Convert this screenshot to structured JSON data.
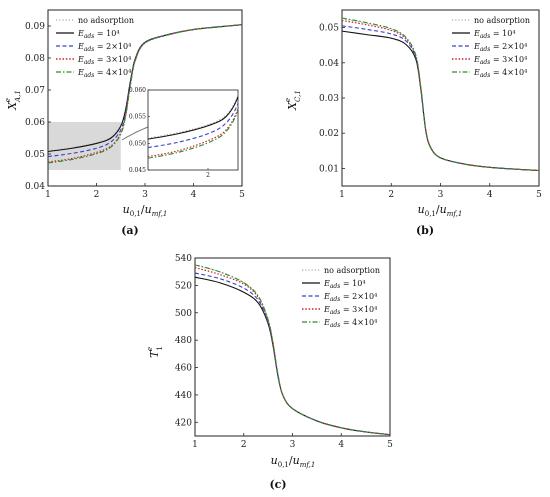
{
  "colors": {
    "no_adsorption": "#aaaaaa",
    "e1": "#111111",
    "e2": "#3344cc",
    "e3": "#cc2222",
    "e4": "#2e8b2e",
    "inset_box": "#d9d9d9"
  },
  "legend_rows": [
    {
      "prefix": "no adsorption",
      "sub": "",
      "value": ""
    },
    {
      "prefix": "E",
      "sub": "ads",
      "value": " = 10⁴"
    },
    {
      "prefix": "E",
      "sub": "ads",
      "value": " = 2×10⁴"
    },
    {
      "prefix": "E",
      "sub": "ads",
      "value": " = 3×10⁴"
    },
    {
      "prefix": "E",
      "sub": "ads",
      "value": " = 4×10⁴"
    }
  ],
  "chart_data": [
    {
      "type": "line",
      "caption": "(a)",
      "xlabel": "u0,1/umf,1",
      "ylabel": "Xe A,1",
      "xlim": [
        1,
        5
      ],
      "ylim": [
        0.04,
        0.095
      ],
      "xticks": [
        "1",
        "2",
        "3",
        "4",
        "5"
      ],
      "yticks": [
        "0.04",
        "0.05",
        "0.06",
        "0.07",
        "0.08",
        "0.09"
      ],
      "legend_position": "upper-left",
      "highlight_region": {
        "x": [
          1,
          2.5
        ],
        "y": [
          0.045,
          0.06
        ]
      },
      "inset": {
        "xlim": [
          1,
          2.5
        ],
        "ylim": [
          0.045,
          0.06
        ],
        "xticks": [
          "2"
        ],
        "yticks": [
          "0.045",
          "0.050",
          "0.055",
          "0.060"
        ]
      },
      "x": [
        1.0,
        1.5,
        2.0,
        2.3,
        2.5,
        2.6,
        2.7,
        2.8,
        3.0,
        3.5,
        4.0,
        4.5,
        5.0
      ],
      "series": [
        {
          "name": "no adsorption",
          "values": [
            0.051,
            0.052,
            0.0535,
            0.0553,
            0.059,
            0.064,
            0.073,
            0.08,
            0.085,
            0.0875,
            0.089,
            0.0898,
            0.0904
          ]
        },
        {
          "name": "Eads = 10⁴",
          "values": [
            0.0508,
            0.0518,
            0.0533,
            0.055,
            0.0587,
            0.0638,
            0.0728,
            0.0798,
            0.0849,
            0.0874,
            0.0889,
            0.0897,
            0.0904
          ]
        },
        {
          "name": "Eads = 2×10⁴",
          "values": [
            0.0492,
            0.0502,
            0.0518,
            0.0538,
            0.0575,
            0.0628,
            0.0722,
            0.0795,
            0.0848,
            0.0874,
            0.0889,
            0.0897,
            0.0904
          ]
        },
        {
          "name": "Eads = 3×10⁴",
          "values": [
            0.0475,
            0.0486,
            0.0505,
            0.0525,
            0.0565,
            0.062,
            0.0718,
            0.0793,
            0.0847,
            0.0873,
            0.0889,
            0.0897,
            0.0904
          ]
        },
        {
          "name": "Eads = 4×10⁴",
          "values": [
            0.0472,
            0.0483,
            0.0501,
            0.0522,
            0.0562,
            0.0617,
            0.0716,
            0.0792,
            0.0847,
            0.0873,
            0.0889,
            0.0897,
            0.0904
          ]
        }
      ]
    },
    {
      "type": "line",
      "caption": "(b)",
      "xlabel": "u0,1/umf,1",
      "ylabel": "Xe C,1",
      "xlim": [
        1,
        5
      ],
      "ylim": [
        0.005,
        0.055
      ],
      "xticks": [
        "1",
        "2",
        "3",
        "4",
        "5"
      ],
      "yticks": [
        "0.01",
        "0.02",
        "0.03",
        "0.04",
        "0.05"
      ],
      "legend_position": "upper-right",
      "x": [
        1.0,
        1.5,
        2.0,
        2.3,
        2.5,
        2.6,
        2.7,
        2.8,
        3.0,
        3.5,
        4.0,
        4.5,
        5.0
      ],
      "series": [
        {
          "name": "no adsorption",
          "values": [
            0.0525,
            0.0512,
            0.0495,
            0.047,
            0.042,
            0.033,
            0.021,
            0.016,
            0.013,
            0.0112,
            0.0103,
            0.0098,
            0.0094
          ]
        },
        {
          "name": "Eads = 10⁴",
          "values": [
            0.049,
            0.048,
            0.047,
            0.0452,
            0.041,
            0.0325,
            0.0208,
            0.0159,
            0.013,
            0.0112,
            0.0103,
            0.0098,
            0.0094
          ]
        },
        {
          "name": "Eads = 2×10⁴",
          "values": [
            0.0505,
            0.0495,
            0.0482,
            0.0462,
            0.0415,
            0.0327,
            0.0209,
            0.0159,
            0.013,
            0.0112,
            0.0103,
            0.0098,
            0.0094
          ]
        },
        {
          "name": "Eads = 3×10⁴",
          "values": [
            0.052,
            0.0508,
            0.0492,
            0.0468,
            0.0418,
            0.0329,
            0.021,
            0.016,
            0.013,
            0.0112,
            0.0103,
            0.0098,
            0.0094
          ]
        },
        {
          "name": "Eads = 4×10⁴",
          "values": [
            0.0527,
            0.0514,
            0.0497,
            0.0472,
            0.0421,
            0.0331,
            0.0211,
            0.016,
            0.013,
            0.0112,
            0.0103,
            0.0098,
            0.0094
          ]
        }
      ]
    },
    {
      "type": "line",
      "caption": "(c)",
      "xlabel": "u0,1/umf,1",
      "ylabel": "Te 1",
      "xlim": [
        1,
        5
      ],
      "ylim": [
        410,
        540
      ],
      "xticks": [
        "1",
        "2",
        "3",
        "4",
        "5"
      ],
      "yticks": [
        "420",
        "440",
        "460",
        "480",
        "500",
        "520",
        "540"
      ],
      "legend_position": "upper-right",
      "x": [
        1.0,
        1.5,
        2.0,
        2.3,
        2.5,
        2.6,
        2.7,
        2.8,
        3.0,
        3.5,
        4.0,
        4.5,
        5.0
      ],
      "series": [
        {
          "name": "no adsorption",
          "values": [
            535,
            530,
            522,
            512,
            495,
            478,
            455,
            440,
            430,
            421,
            416,
            413,
            411
          ]
        },
        {
          "name": "Eads = 10⁴",
          "values": [
            526,
            522,
            515,
            507,
            492,
            476,
            454,
            440,
            430,
            421,
            416,
            413,
            411
          ]
        },
        {
          "name": "Eads = 2×10⁴",
          "values": [
            529,
            525,
            518,
            509,
            493,
            477,
            455,
            440,
            430,
            421,
            416,
            413,
            411
          ]
        },
        {
          "name": "Eads = 3×10⁴",
          "values": [
            533,
            528,
            521,
            511,
            494,
            478,
            455,
            440,
            430,
            421,
            416,
            413,
            411
          ]
        },
        {
          "name": "Eads = 4×10⁴",
          "values": [
            535,
            530,
            522,
            512,
            495,
            478,
            455,
            440,
            430,
            421,
            416,
            413,
            411
          ]
        }
      ]
    }
  ]
}
